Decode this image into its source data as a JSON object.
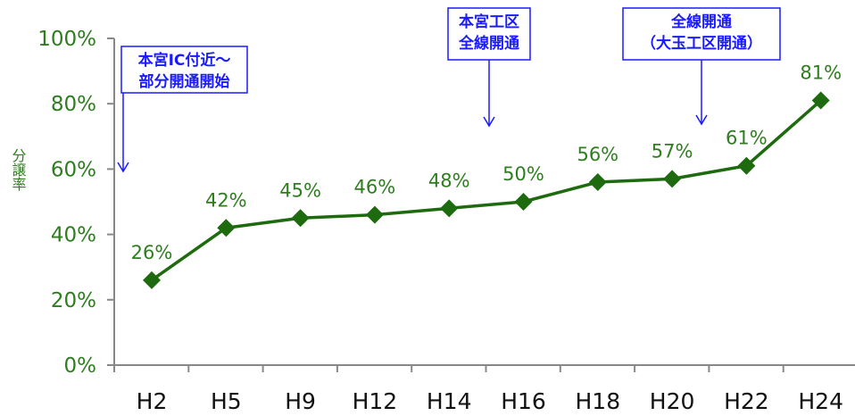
{
  "chart_data": {
    "type": "line",
    "title": "",
    "ylabel": "分譲率",
    "xlabel": "",
    "categories": [
      "H2",
      "H5",
      "H9",
      "H12",
      "H14",
      "H16",
      "H18",
      "H20",
      "H22",
      "H24"
    ],
    "series": [
      {
        "values": [
          26,
          42,
          45,
          46,
          48,
          50,
          56,
          57,
          61,
          81
        ],
        "data_labels": [
          "26%",
          "42%",
          "45%",
          "46%",
          "48%",
          "50%",
          "56%",
          "57%",
          "61%",
          "81%"
        ]
      }
    ],
    "yticks": [
      0,
      20,
      40,
      60,
      80,
      100
    ],
    "ytick_labels": [
      "0%",
      "20%",
      "40%",
      "60%",
      "80%",
      "100%"
    ],
    "ylim": [
      0,
      100
    ],
    "grid": false,
    "legend": "none",
    "annotations": [
      {
        "lines": [
          "本宮IC付近～",
          "部分開通開始"
        ],
        "points_to": "before H2"
      },
      {
        "lines": [
          "本宮工区",
          "全線開通"
        ],
        "points_to": "between H14 and H16"
      },
      {
        "lines": [
          "全線開通",
          "（大玉工区開通）"
        ],
        "points_to": "between H20 and H22"
      }
    ],
    "colors": {
      "series": "#1e6b0f",
      "tick_text": "#2e7d1f",
      "annotation": "#1a1aff",
      "axis": "#888888"
    }
  }
}
